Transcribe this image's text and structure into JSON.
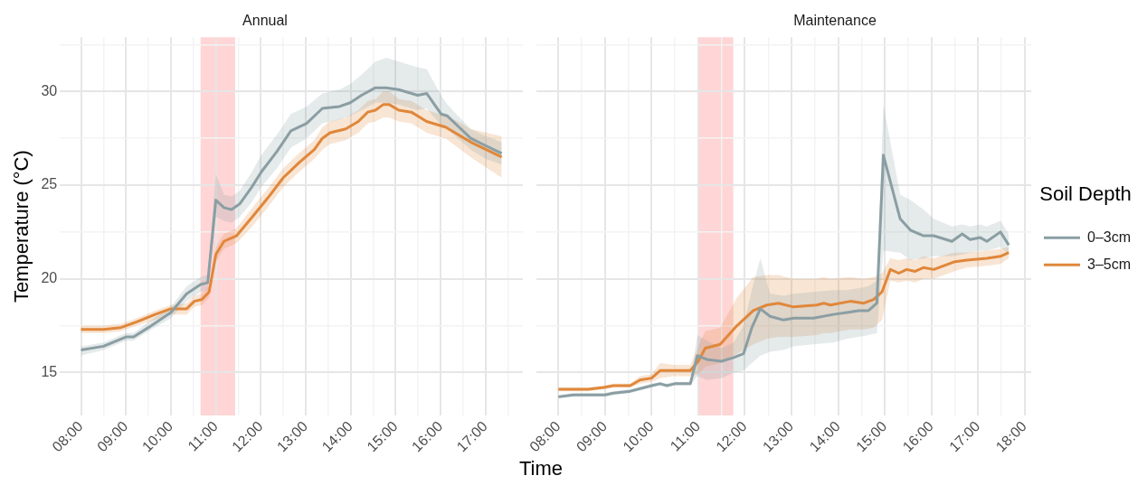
{
  "chart_data": [
    {
      "type": "line",
      "title": "Annual",
      "ylabel": "Temperature (°C)",
      "xlabel": "Time",
      "grid": true,
      "xlim": [
        7.53,
        17.83
      ],
      "xticks": [
        {
          "value": 8,
          "label": "08:00"
        },
        {
          "value": 8.5,
          "label": null
        },
        {
          "value": 9,
          "label": "09:00"
        },
        {
          "value": 9.5,
          "label": null
        },
        {
          "value": 10,
          "label": "10:00"
        },
        {
          "value": 10.5,
          "label": null
        },
        {
          "value": 11,
          "label": "11:00"
        },
        {
          "value": 11.5,
          "label": null
        },
        {
          "value": 12,
          "label": "12:00"
        },
        {
          "value": 12.5,
          "label": null
        },
        {
          "value": 13,
          "label": "13:00"
        },
        {
          "value": 13.5,
          "label": null
        },
        {
          "value": 14,
          "label": "14:00"
        },
        {
          "value": 14.5,
          "label": null
        },
        {
          "value": 15,
          "label": "15:00"
        },
        {
          "value": 15.5,
          "label": null
        },
        {
          "value": 16,
          "label": "16:00"
        },
        {
          "value": 16.5,
          "label": null
        },
        {
          "value": 17,
          "label": "17:00"
        },
        {
          "value": 17.5,
          "label": null
        }
      ],
      "ylim": [
        12.7,
        32.9
      ],
      "yticks": [
        15,
        {
          "value": 17.5,
          "label": null
        },
        20,
        {
          "value": 22.5,
          "label": null
        },
        25,
        {
          "value": 27.5,
          "label": null
        },
        30,
        {
          "value": 32.5,
          "label": null
        }
      ],
      "bands": [
        {
          "axis": "x",
          "from": 10.66,
          "to": 11.43,
          "color": "#ffcaca"
        }
      ],
      "series": [
        {
          "color": "#8a9ea3",
          "x": [
            8,
            8.5,
            9,
            9.17,
            9.5,
            10,
            10.35,
            10.66,
            10.82,
            11,
            11.18,
            11.35,
            11.53,
            11.8,
            12.01,
            12.36,
            12.67,
            13.02,
            13.37,
            13.75,
            13.99,
            14.24,
            14.55,
            14.79,
            15.07,
            15.49,
            15.69,
            16.01,
            16.15,
            16.67,
            17.01,
            17.36
          ],
          "values": [
            16.2,
            16.4,
            16.9,
            16.9,
            17.4,
            18.2,
            19.2,
            19.7,
            19.8,
            24.2,
            23.8,
            23.7,
            24.0,
            24.9,
            25.7,
            26.8,
            27.9,
            28.3,
            29.1,
            29.2,
            29.4,
            29.8,
            30.2,
            30.2,
            30.1,
            29.8,
            29.9,
            28.8,
            28.7,
            27.5,
            27.1,
            26.7
          ],
          "lower": [
            15.9,
            16.2,
            16.7,
            16.7,
            17.2,
            17.9,
            18.8,
            19.3,
            19.4,
            23.3,
            23.1,
            23.0,
            23.3,
            24.1,
            24.9,
            25.9,
            27.0,
            27.5,
            28.3,
            28.5,
            28.7,
            29.0,
            29.4,
            29.4,
            29.3,
            29.0,
            29.1,
            28.2,
            28.0,
            26.9,
            26.4,
            26.1
          ],
          "upper": [
            16.4,
            16.6,
            17.1,
            17.1,
            17.7,
            18.5,
            19.6,
            20.1,
            20.2,
            25.6,
            24.5,
            24.4,
            24.7,
            25.7,
            26.6,
            27.7,
            28.8,
            29.2,
            29.9,
            30.1,
            30.4,
            30.9,
            31.6,
            31.8,
            31.6,
            31.3,
            31.2,
            29.8,
            29.3,
            28.0,
            27.6,
            27.3
          ]
        },
        {
          "color": "#e0873a",
          "x": [
            8,
            8.5,
            8.89,
            9.24,
            9.65,
            10,
            10.35,
            10.52,
            10.69,
            10.85,
            11,
            11.18,
            11.46,
            11.81,
            12.15,
            12.5,
            12.85,
            13.19,
            13.37,
            13.54,
            13.89,
            14.17,
            14.38,
            14.55,
            14.72,
            14.86,
            15.07,
            15.35,
            15.69,
            16.11,
            16.39,
            16.67,
            17.36
          ],
          "values": [
            17.3,
            17.3,
            17.4,
            17.7,
            18.1,
            18.4,
            18.4,
            18.8,
            18.9,
            19.3,
            21.3,
            22.0,
            22.3,
            23.3,
            24.3,
            25.4,
            26.2,
            26.9,
            27.5,
            27.8,
            28.0,
            28.4,
            28.9,
            29.0,
            29.3,
            29.3,
            29.0,
            28.9,
            28.4,
            28.1,
            27.7,
            27.3,
            26.5
          ],
          "lower": [
            17.1,
            17.1,
            17.2,
            17.5,
            17.8,
            18.1,
            18.1,
            18.5,
            18.6,
            19.0,
            20.9,
            21.6,
            21.9,
            22.8,
            23.8,
            24.9,
            25.7,
            26.4,
            26.9,
            27.2,
            27.4,
            27.8,
            28.3,
            28.4,
            28.6,
            28.6,
            28.4,
            28.3,
            27.8,
            27.5,
            27.0,
            26.5,
            25.4
          ],
          "upper": [
            17.5,
            17.5,
            17.6,
            17.9,
            18.3,
            18.6,
            18.7,
            19.1,
            19.2,
            19.6,
            21.7,
            22.4,
            22.7,
            23.8,
            24.8,
            25.9,
            26.7,
            27.4,
            28.1,
            28.4,
            28.6,
            29.0,
            29.5,
            29.6,
            30.0,
            30.0,
            29.6,
            29.5,
            29.0,
            28.7,
            28.4,
            28.0,
            27.6
          ]
        }
      ]
    },
    {
      "type": "line",
      "title": "Maintenance",
      "grid": true,
      "tick_labels": "x",
      "legend": "right",
      "legend_title": "Soil Depth",
      "xlim": [
        7.52,
        18.14
      ],
      "xticks": [
        {
          "value": 8,
          "label": "08:00"
        },
        {
          "value": 8.5,
          "label": null
        },
        {
          "value": 9,
          "label": "09:00"
        },
        {
          "value": 9.5,
          "label": null
        },
        {
          "value": 10,
          "label": "10:00"
        },
        {
          "value": 10.5,
          "label": null
        },
        {
          "value": 11,
          "label": "11:00"
        },
        {
          "value": 11.5,
          "label": null
        },
        {
          "value": 12,
          "label": "12:00"
        },
        {
          "value": 12.5,
          "label": null
        },
        {
          "value": 13,
          "label": "13:00"
        },
        {
          "value": 13.5,
          "label": null
        },
        {
          "value": 14,
          "label": "14:00"
        },
        {
          "value": 14.5,
          "label": null
        },
        {
          "value": 15,
          "label": "15:00"
        },
        {
          "value": 15.5,
          "label": null
        },
        {
          "value": 16,
          "label": "16:00"
        },
        {
          "value": 16.5,
          "label": null
        },
        {
          "value": 17,
          "label": "17:00"
        },
        {
          "value": 17.5,
          "label": null
        },
        {
          "value": 18,
          "label": "18:00"
        }
      ],
      "ylim": [
        12.7,
        32.9
      ],
      "yticks": [
        15,
        {
          "value": 17.5,
          "label": null
        },
        20,
        {
          "value": 22.5,
          "label": null
        },
        25,
        {
          "value": 27.5,
          "label": null
        },
        30,
        {
          "value": 32.5,
          "label": null
        }
      ],
      "bands": [
        {
          "axis": "x",
          "from": 11.02,
          "to": 11.75,
          "color": "#ffcaca"
        }
      ],
      "series": [
        {
          "name": "0–3cm",
          "color": "#8a9ea3",
          "x": [
            8,
            8.32,
            9,
            9.18,
            9.54,
            10,
            10.18,
            10.32,
            10.5,
            10.83,
            10.98,
            11.18,
            11.5,
            11.76,
            11.97,
            12.15,
            12.33,
            12.54,
            12.83,
            13.04,
            13.47,
            13.9,
            14.19,
            14.44,
            14.65,
            14.83,
            14.97,
            15.33,
            15.55,
            15.83,
            16.05,
            16.44,
            16.66,
            16.83,
            17.05,
            17.19,
            17.48,
            17.66
          ],
          "values": [
            13.7,
            13.8,
            13.8,
            13.9,
            14.0,
            14.3,
            14.4,
            14.3,
            14.4,
            14.4,
            15.9,
            15.7,
            15.6,
            15.8,
            16.0,
            17.4,
            18.4,
            18.0,
            17.8,
            17.9,
            17.9,
            18.1,
            18.2,
            18.3,
            18.3,
            18.7,
            26.6,
            23.2,
            22.6,
            22.3,
            22.3,
            22.0,
            22.4,
            22.1,
            22.2,
            22.0,
            22.5,
            21.8
          ],
          "lower": [
            13.6,
            13.7,
            13.7,
            13.8,
            13.9,
            14.2,
            14.3,
            14.2,
            14.3,
            14.3,
            14.8,
            14.6,
            14.7,
            15.0,
            15.1,
            15.5,
            15.9,
            16.1,
            16.2,
            16.4,
            16.5,
            16.6,
            16.8,
            16.9,
            17.0,
            17.1,
            21.5,
            21.4,
            21.0,
            21.1,
            21.2,
            21.2,
            21.3,
            21.4,
            21.5,
            21.5,
            21.7,
            21.3
          ],
          "upper": [
            13.8,
            13.9,
            13.9,
            14.0,
            14.1,
            14.4,
            14.5,
            14.4,
            14.5,
            14.5,
            17.0,
            16.7,
            16.3,
            16.6,
            17.5,
            19.4,
            21.1,
            19.2,
            19.1,
            19.2,
            19.3,
            19.4,
            19.4,
            19.5,
            19.6,
            19.9,
            29.3,
            24.5,
            24.2,
            23.7,
            23.2,
            22.8,
            22.9,
            22.8,
            22.9,
            22.8,
            23.1,
            22.4
          ]
        },
        {
          "name": "3–5cm",
          "color": "#e0873a",
          "x": [
            8,
            8.64,
            8.97,
            9.18,
            9.54,
            9.75,
            10,
            10.18,
            10.47,
            10.68,
            10.83,
            11,
            11.15,
            11.47,
            11.83,
            12.18,
            12.47,
            12.72,
            13.04,
            13.54,
            13.69,
            13.83,
            14.26,
            14.55,
            14.76,
            14.94,
            15.12,
            15.3,
            15.47,
            15.65,
            15.83,
            16.05,
            16.48,
            16.76,
            17.19,
            17.48,
            17.66
          ],
          "values": [
            14.1,
            14.1,
            14.2,
            14.3,
            14.3,
            14.6,
            14.7,
            15.1,
            15.1,
            15.1,
            15.1,
            15.6,
            16.3,
            16.5,
            17.5,
            18.3,
            18.6,
            18.7,
            18.5,
            18.6,
            18.7,
            18.6,
            18.8,
            18.7,
            18.9,
            19.3,
            20.5,
            20.3,
            20.5,
            20.4,
            20.6,
            20.5,
            20.9,
            21.0,
            21.1,
            21.2,
            21.4
          ],
          "lower": [
            14.0,
            14.0,
            14.1,
            14.2,
            14.2,
            14.4,
            14.5,
            14.7,
            14.8,
            14.8,
            14.8,
            14.9,
            15.3,
            15.5,
            16.0,
            16.5,
            16.8,
            16.9,
            16.9,
            17.0,
            17.1,
            17.1,
            17.3,
            17.3,
            17.4,
            17.8,
            19.9,
            19.8,
            19.9,
            19.8,
            20.0,
            20.0,
            20.4,
            20.6,
            20.7,
            20.8,
            21.1
          ],
          "upper": [
            14.2,
            14.2,
            14.3,
            14.4,
            14.4,
            14.8,
            14.9,
            15.5,
            15.4,
            15.4,
            15.4,
            16.4,
            17.2,
            17.4,
            19.0,
            20.1,
            20.2,
            20.2,
            20.0,
            20.0,
            20.1,
            20.0,
            20.1,
            20.0,
            20.1,
            20.3,
            21.1,
            21.0,
            21.1,
            21.0,
            21.2,
            21.1,
            21.4,
            21.4,
            21.5,
            21.6,
            21.7
          ]
        }
      ]
    }
  ]
}
